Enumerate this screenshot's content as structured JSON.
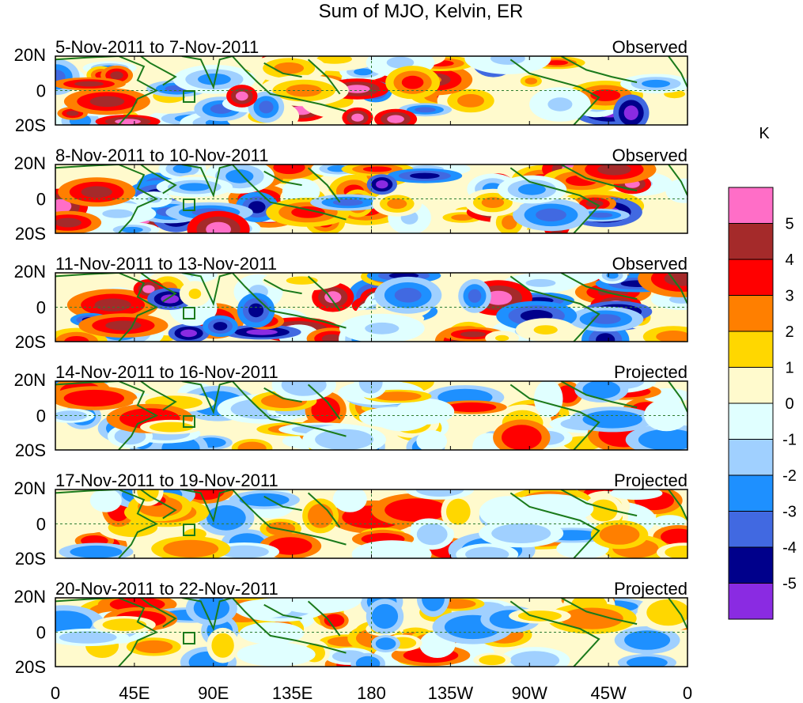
{
  "figure": {
    "title": "Sum of MJO, Kelvin, ER",
    "unit_label": "K"
  },
  "panels": [
    {
      "date_range": "5-Nov-2011 to 7-Nov-2011",
      "kind": "Observed"
    },
    {
      "date_range": "8-Nov-2011 to 10-Nov-2011",
      "kind": "Observed"
    },
    {
      "date_range": "11-Nov-2011 to 13-Nov-2011",
      "kind": "Observed"
    },
    {
      "date_range": "14-Nov-2011 to 16-Nov-2011",
      "kind": "Projected"
    },
    {
      "date_range": "17-Nov-2011 to 19-Nov-2011",
      "kind": "Projected"
    },
    {
      "date_range": "20-Nov-2011 to 22-Nov-2011",
      "kind": "Projected"
    }
  ],
  "lat_ticks": [
    "20N",
    "0",
    "20S"
  ],
  "lon_ticks": [
    "0",
    "45E",
    "90E",
    "135E",
    "180",
    "135W",
    "90W",
    "45W",
    "0"
  ],
  "colorbar": {
    "tick_labels": [
      "5",
      "4",
      "3",
      "2",
      "1",
      "0",
      "-1",
      "-2",
      "-3",
      "-4",
      "-5"
    ],
    "colors": [
      "#ff6ec7",
      "#a52a2a",
      "#ff0000",
      "#ff7f00",
      "#ffd700",
      "#fffacd",
      "#e0ffff",
      "#a0d0ff",
      "#1e90ff",
      "#4169e1",
      "#00008b",
      "#8a2be2"
    ]
  }
}
